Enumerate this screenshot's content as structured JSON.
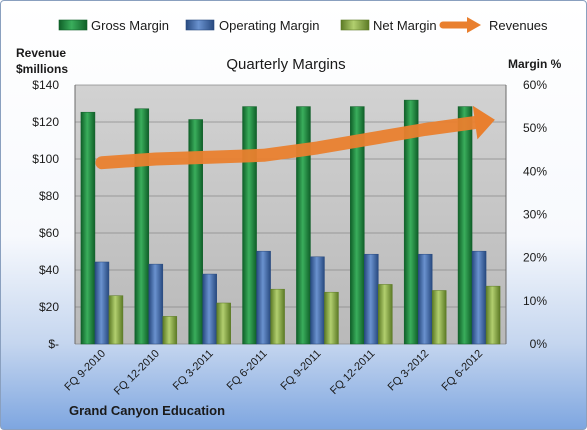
{
  "chart_data": {
    "type": "bar",
    "title": "Quarterly Margins",
    "categories": [
      "FQ 9-2010",
      "FQ 12-2010",
      "FQ 3-2011",
      "FQ 6-2011",
      "FQ 9-2011",
      "FQ 12-2011",
      "FQ 3-2012",
      "FQ 6-2012"
    ],
    "left_axis": {
      "label_line1": "Revenue",
      "label_line2": "$millions",
      "ylim": [
        0,
        140
      ],
      "ticks": [
        0,
        20,
        40,
        60,
        80,
        100,
        120,
        140
      ],
      "tick_labels": [
        "$-",
        "$20",
        "$40",
        "$60",
        "$80",
        "$100",
        "$120",
        "$140"
      ]
    },
    "right_axis": {
      "label": "Margin %",
      "ylim": [
        0,
        60
      ],
      "ticks": [
        0,
        10,
        20,
        30,
        40,
        50,
        60
      ],
      "tick_labels": [
        "0%",
        "10%",
        "20%",
        "30%",
        "40%",
        "50%",
        "60%"
      ]
    },
    "series": [
      {
        "name": "Gross Margin",
        "axis": "right",
        "kind": "bar",
        "color": "#1e8a3c",
        "values": [
          53.7,
          54.5,
          52,
          55,
          55,
          55,
          56.5,
          55
        ]
      },
      {
        "name": "Operating Margin",
        "axis": "right",
        "kind": "bar",
        "color": "#3f6cb2",
        "values": [
          19,
          18.5,
          16.2,
          21.5,
          20.2,
          20.8,
          20.8,
          21.5
        ]
      },
      {
        "name": "Net Margin",
        "axis": "right",
        "kind": "bar",
        "color": "#8fb04a",
        "values": [
          11.2,
          6.4,
          9.5,
          12.7,
          12,
          13.8,
          12.4,
          13.4
        ]
      },
      {
        "name": "Revenues",
        "axis": "left",
        "kind": "line-arrow",
        "color": "#e97f2e",
        "values": [
          98,
          100,
          101,
          102,
          106,
          111,
          116,
          120
        ]
      }
    ],
    "legend_position": "top",
    "grid": true,
    "footer_text": "Grand Canyon Education"
  },
  "colors": {
    "plot_bg": "#c4c4c4",
    "grid": "#8a8a8a",
    "frame_border": "#8aa0bf"
  }
}
